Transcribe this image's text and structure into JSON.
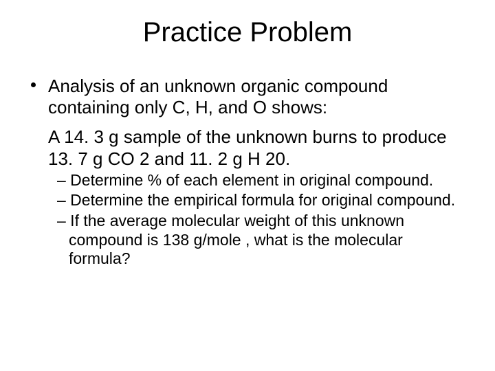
{
  "slide": {
    "title": "Practice Problem",
    "main_bullet_line1": "Analysis of an unknown organic compound containing only C, H, and O shows:",
    "main_line2": "A 14. 3 g sample of the unknown burns to produce 13. 7 g CO 2 and  11. 2 g H 20.",
    "sub_bullets": [
      "– Determine % of each element in original compound.",
      "– Determine the empirical formula for original compound.",
      "– If the average molecular weight of this unknown compound is 138 g/mole , what is the molecular formula?"
    ]
  },
  "style": {
    "background_color": "#ffffff",
    "text_color": "#000000",
    "title_fontsize": 40,
    "body_fontsize": 26,
    "sub_fontsize": 23,
    "font_family": "Arial"
  }
}
